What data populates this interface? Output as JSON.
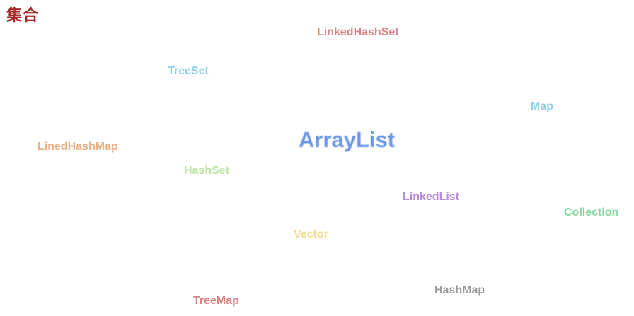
{
  "title": "集合",
  "words": [
    {
      "id": "linkedhashset",
      "text": "LinkedHashSet",
      "color": "#d98585"
    },
    {
      "id": "treeset",
      "text": "TreeSet",
      "color": "#8ecfee"
    },
    {
      "id": "map",
      "text": "Map",
      "color": "#8ecfee"
    },
    {
      "id": "arraylist",
      "text": "ArrayList",
      "color": "#6b96e6"
    },
    {
      "id": "linedhashmap",
      "text": "LinedHashMap",
      "color": "#eab084"
    },
    {
      "id": "hashset",
      "text": "HashSet",
      "color": "#bfe3a3"
    },
    {
      "id": "linkedlist",
      "text": "LinkedList",
      "color": "#b78bd6"
    },
    {
      "id": "collection",
      "text": "Collection",
      "color": "#86d6a0"
    },
    {
      "id": "vector",
      "text": "Vector",
      "color": "#f2dc94"
    },
    {
      "id": "hashmap",
      "text": "HashMap",
      "color": "#9a9a9a"
    },
    {
      "id": "treemap",
      "text": "TreeMap",
      "color": "#d98585"
    }
  ]
}
